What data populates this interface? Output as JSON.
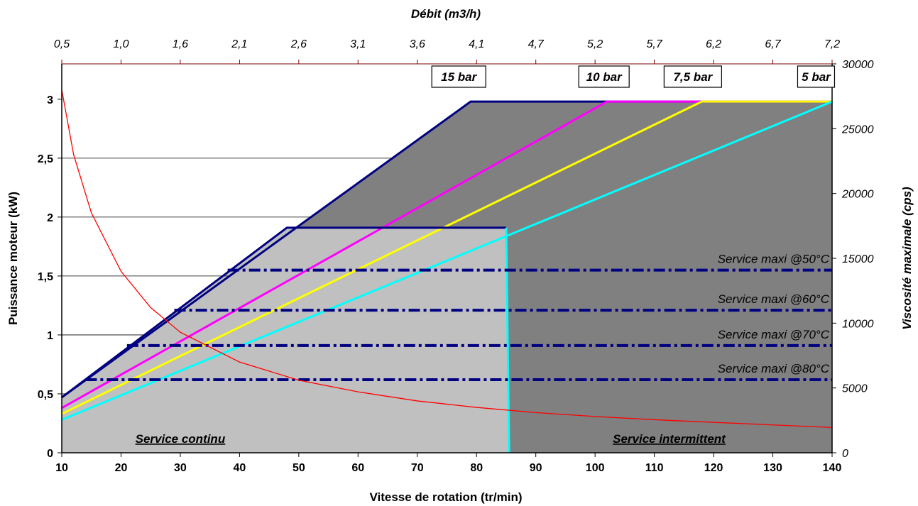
{
  "chart_data": {
    "type": "line",
    "title": "",
    "xlabel": "Vitesse de rotation (tr/min)",
    "ylabel": "Puissance moteur (kW)",
    "y2label": "Viscosité maximale (cps)",
    "x2label": "Débit (m3/h)",
    "xlim": [
      10,
      140
    ],
    "ylim": [
      0,
      3.3
    ],
    "y2lim": [
      0,
      30000
    ],
    "xticks": [
      "10",
      "20",
      "30",
      "40",
      "50",
      "60",
      "70",
      "80",
      "90",
      "100",
      "110",
      "120",
      "130",
      "140"
    ],
    "yticks": [
      "0",
      "0,5",
      "1",
      "1,5",
      "2",
      "2,5",
      "3"
    ],
    "y2ticks": [
      "0",
      "5000",
      "10000",
      "15000",
      "20000",
      "25000",
      "30000"
    ],
    "x2ticks": [
      "0,5",
      "1,0",
      "1,6",
      "2,1",
      "2,6",
      "3,1",
      "3,6",
      "4,1",
      "4,7",
      "5,2",
      "5,7",
      "6,2",
      "6,7",
      "7,2"
    ],
    "grid": "horizontal",
    "zones": [
      {
        "label": "Service continu",
        "color": "#c0c0c0"
      },
      {
        "label": "Service intermittent",
        "color": "#808080"
      }
    ],
    "series": [
      {
        "name": "15 bar",
        "color": "#000080",
        "x": [
          10,
          79,
          140
        ],
        "y": [
          0.47,
          2.98,
          2.98
        ]
      },
      {
        "name": "10 bar",
        "color": "#ff00ff",
        "x": [
          10,
          102,
          140
        ],
        "y": [
          0.38,
          2.98,
          2.98
        ]
      },
      {
        "name": "7,5 bar",
        "color": "#ffff00",
        "x": [
          10,
          118,
          140
        ],
        "y": [
          0.33,
          2.98,
          2.98
        ]
      },
      {
        "name": "5 bar",
        "color": "#00ffff",
        "x": [
          10,
          140
        ],
        "y": [
          0.28,
          2.98
        ]
      }
    ],
    "continuous_limit": {
      "x": [
        10,
        48,
        85,
        85.5
      ],
      "y": [
        0.47,
        1.91,
        1.91,
        0
      ]
    },
    "viscosity_curve": {
      "color": "#ff0000",
      "x": [
        10,
        12,
        15,
        20,
        25,
        30,
        40,
        50,
        60,
        70,
        80,
        90,
        100,
        110,
        120,
        130,
        140
      ],
      "y": [
        28000,
        23000,
        18500,
        14000,
        11200,
        9300,
        7000,
        5600,
        4700,
        4000,
        3500,
        3100,
        2800,
        2550,
        2350,
        2150,
        1950
      ]
    },
    "service_max": [
      {
        "label": "Service maxi @50°C",
        "y": 1.55,
        "x_start": 38
      },
      {
        "label": "Service maxi @60°C",
        "y": 1.21,
        "x_start": 29
      },
      {
        "label": "Service maxi @70°C",
        "y": 0.91,
        "x_start": 21
      },
      {
        "label": "Service maxi @80°C",
        "y": 0.62,
        "x_start": 14
      }
    ]
  }
}
